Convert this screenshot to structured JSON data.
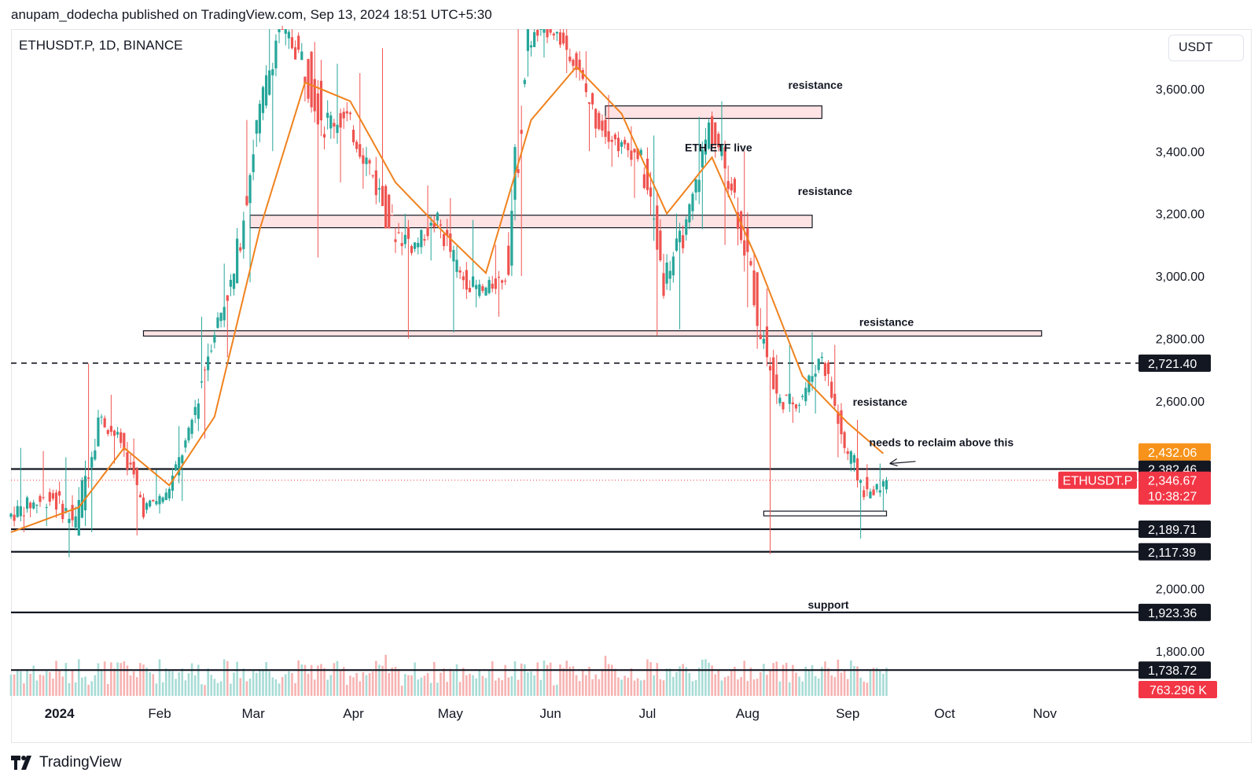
{
  "header": {
    "text": "anupam_dodecha published on TradingView.com, Sep 13, 2024 18:51 UTC+5:30"
  },
  "symbol_label": "ETHUSDT.P, 1D, BINANCE",
  "unit_label": "USDT",
  "footer": {
    "brand": "TradingView",
    "logo_icon": "tradingview-logo-icon"
  },
  "colors": {
    "up": "#26a69a",
    "down": "#ef5350",
    "ma": "#f0821e",
    "zone_fill": "#fde3e4",
    "price_tag": "#f23645",
    "ma_tag": "#f7931a"
  },
  "chart_data": {
    "type": "candlestick",
    "title": "ETHUSDT.P, 1D, BINANCE",
    "y_unit": "USDT",
    "ylim": [
      1620,
      3780
    ],
    "grid": false,
    "y_ticks": [
      "3,600.00",
      "3,400.00",
      "3,200.00",
      "3,000.00",
      "2,800.00",
      "2,600.00",
      "2,000.00",
      "1,800.00"
    ],
    "x_ticks": [
      "2024",
      "Feb",
      "Mar",
      "Apr",
      "May",
      "Jun",
      "Jul",
      "Aug",
      "Sep",
      "Oct",
      "Nov"
    ],
    "ohlc_weekly": [
      {
        "week": "2023-12-17",
        "o": 2230,
        "h": 2450,
        "l": 2180,
        "c": 2270
      },
      {
        "week": "2023-12-24",
        "o": 2270,
        "h": 2440,
        "l": 2200,
        "c": 2290
      },
      {
        "week": "2023-12-31",
        "o": 2290,
        "h": 2420,
        "l": 2100,
        "c": 2210
      },
      {
        "week": "2024-01-07",
        "o": 2210,
        "h": 2720,
        "l": 2180,
        "c": 2550
      },
      {
        "week": "2024-01-14",
        "o": 2550,
        "h": 2620,
        "l": 2400,
        "c": 2470
      },
      {
        "week": "2024-01-21",
        "o": 2470,
        "h": 2480,
        "l": 2170,
        "c": 2260
      },
      {
        "week": "2024-01-28",
        "o": 2260,
        "h": 2380,
        "l": 2240,
        "c": 2300
      },
      {
        "week": "2024-02-04",
        "o": 2300,
        "h": 2520,
        "l": 2280,
        "c": 2490
      },
      {
        "week": "2024-02-11",
        "o": 2490,
        "h": 2870,
        "l": 2480,
        "c": 2800
      },
      {
        "week": "2024-02-18",
        "o": 2800,
        "h": 3040,
        "l": 2740,
        "c": 3000
      },
      {
        "week": "2024-02-25",
        "o": 3000,
        "h": 3500,
        "l": 2980,
        "c": 3480
      },
      {
        "week": "2024-03-03",
        "o": 3480,
        "h": 3820,
        "l": 3400,
        "c": 3800
      },
      {
        "week": "2024-03-10",
        "o": 3800,
        "h": 4090,
        "l": 3700,
        "c": 3700
      },
      {
        "week": "2024-03-17",
        "o": 3700,
        "h": 3750,
        "l": 3060,
        "c": 3500
      },
      {
        "week": "2024-03-24",
        "o": 3500,
        "h": 3680,
        "l": 3300,
        "c": 3500
      },
      {
        "week": "2024-03-31",
        "o": 3500,
        "h": 3650,
        "l": 3280,
        "c": 3350
      },
      {
        "week": "2024-04-07",
        "o": 3350,
        "h": 3730,
        "l": 3230,
        "c": 3150
      },
      {
        "week": "2024-04-14",
        "o": 3150,
        "h": 3200,
        "l": 2800,
        "c": 3100
      },
      {
        "week": "2024-04-21",
        "o": 3100,
        "h": 3290,
        "l": 3050,
        "c": 3180
      },
      {
        "week": "2024-04-28",
        "o": 3180,
        "h": 3250,
        "l": 2820,
        "c": 3000
      },
      {
        "week": "2024-05-05",
        "o": 3000,
        "h": 3180,
        "l": 2900,
        "c": 2950
      },
      {
        "week": "2024-05-12",
        "o": 2950,
        "h": 3100,
        "l": 2870,
        "c": 3000
      },
      {
        "week": "2024-05-19",
        "o": 3000,
        "h": 3950,
        "l": 3000,
        "c": 3750
      },
      {
        "week": "2024-05-26",
        "o": 3750,
        "h": 4000,
        "l": 3700,
        "c": 3800
      },
      {
        "week": "2024-06-02",
        "o": 3800,
        "h": 3900,
        "l": 3650,
        "c": 3700
      },
      {
        "week": "2024-06-09",
        "o": 3700,
        "h": 3720,
        "l": 3400,
        "c": 3500
      },
      {
        "week": "2024-06-16",
        "o": 3500,
        "h": 3580,
        "l": 3350,
        "c": 3420
      },
      {
        "week": "2024-06-23",
        "o": 3420,
        "h": 3480,
        "l": 3250,
        "c": 3380
      },
      {
        "week": "2024-06-30",
        "o": 3380,
        "h": 3450,
        "l": 2810,
        "c": 3000
      },
      {
        "week": "2024-07-07",
        "o": 3000,
        "h": 3200,
        "l": 2830,
        "c": 3150
      },
      {
        "week": "2024-07-14",
        "o": 3150,
        "h": 3510,
        "l": 3150,
        "c": 3480
      },
      {
        "week": "2024-07-21",
        "o": 3480,
        "h": 3560,
        "l": 3100,
        "c": 3300
      },
      {
        "week": "2024-07-28",
        "o": 3300,
        "h": 3400,
        "l": 2900,
        "c": 2950
      },
      {
        "week": "2024-08-04",
        "o": 2950,
        "h": 2960,
        "l": 2110,
        "c": 2600
      },
      {
        "week": "2024-08-11",
        "o": 2600,
        "h": 2780,
        "l": 2530,
        "c": 2600
      },
      {
        "week": "2024-08-18",
        "o": 2600,
        "h": 2820,
        "l": 2560,
        "c": 2750
      },
      {
        "week": "2024-08-25",
        "o": 2750,
        "h": 2780,
        "l": 2420,
        "c": 2450
      },
      {
        "week": "2024-09-01",
        "o": 2450,
        "h": 2540,
        "l": 2160,
        "c": 2300
      },
      {
        "week": "2024-09-08",
        "o": 2300,
        "h": 2400,
        "l": 2250,
        "c": 2346.67
      }
    ],
    "moving_average": [
      {
        "date": "2023-12-17",
        "v": 2180
      },
      {
        "date": "2024-01-07",
        "v": 2260
      },
      {
        "date": "2024-01-21",
        "v": 2450
      },
      {
        "date": "2024-02-04",
        "v": 2330
      },
      {
        "date": "2024-02-18",
        "v": 2550
      },
      {
        "date": "2024-03-03",
        "v": 3150
      },
      {
        "date": "2024-03-17",
        "v": 3620
      },
      {
        "date": "2024-03-31",
        "v": 3560
      },
      {
        "date": "2024-04-14",
        "v": 3300
      },
      {
        "date": "2024-04-28",
        "v": 3150
      },
      {
        "date": "2024-05-12",
        "v": 3010
      },
      {
        "date": "2024-05-26",
        "v": 3500
      },
      {
        "date": "2024-06-09",
        "v": 3670
      },
      {
        "date": "2024-06-23",
        "v": 3520
      },
      {
        "date": "2024-07-07",
        "v": 3200
      },
      {
        "date": "2024-07-21",
        "v": 3380
      },
      {
        "date": "2024-08-04",
        "v": 3050
      },
      {
        "date": "2024-08-18",
        "v": 2680
      },
      {
        "date": "2024-09-01",
        "v": 2530
      },
      {
        "date": "2024-09-12",
        "v": 2432.06
      }
    ],
    "resistance_zones": [
      {
        "label": "resistance",
        "from": 3505,
        "to": 3545,
        "start": "2024-06-18",
        "end": "2024-08-24"
      },
      {
        "label": "resistance",
        "from": 3155,
        "to": 3195,
        "start": "2024-02-29",
        "end": "2024-08-21"
      },
      {
        "label": "resistance",
        "from": 2808,
        "to": 2825,
        "start": "2024-01-27",
        "end": "2024-10-31"
      }
    ],
    "annotations": [
      {
        "text": "resistance",
        "date": "2024-08-22",
        "price": 3600
      },
      {
        "text": "ETH ETF live",
        "date": "2024-07-23",
        "price": 3400
      },
      {
        "text": "resistance",
        "date": "2024-08-25",
        "price": 3260
      },
      {
        "text": "resistance",
        "date": "2024-09-13",
        "price": 2840
      },
      {
        "text": "resistance",
        "date": "2024-09-11",
        "price": 2585
      },
      {
        "text": "needs to reclaim above this",
        "date": "2024-09-30",
        "price": 2455
      },
      {
        "text": "support",
        "date": "2024-08-26",
        "price": 1935
      }
    ],
    "levels": [
      {
        "value": 2721.4,
        "label": "2,721.40",
        "style": "dashed"
      },
      {
        "value": 2382.46,
        "label": "2,382.46",
        "style": "solid"
      },
      {
        "value": 2189.71,
        "label": "2,189.71",
        "style": "solid"
      },
      {
        "value": 2117.39,
        "label": "2,117.39",
        "style": "solid"
      },
      {
        "value": 1923.36,
        "label": "1,923.36",
        "style": "solid"
      },
      {
        "value": 1738.72,
        "label": "1,738.72",
        "style": "solid"
      }
    ],
    "last_price": {
      "value": 2346.67,
      "label": "2,346.67",
      "symbol": "ETHUSDT.P",
      "countdown": "10:38:27"
    },
    "ma_last": {
      "value": 2432.06,
      "label": "2,432.06"
    },
    "volume_last": {
      "label": "763.296 K"
    }
  }
}
